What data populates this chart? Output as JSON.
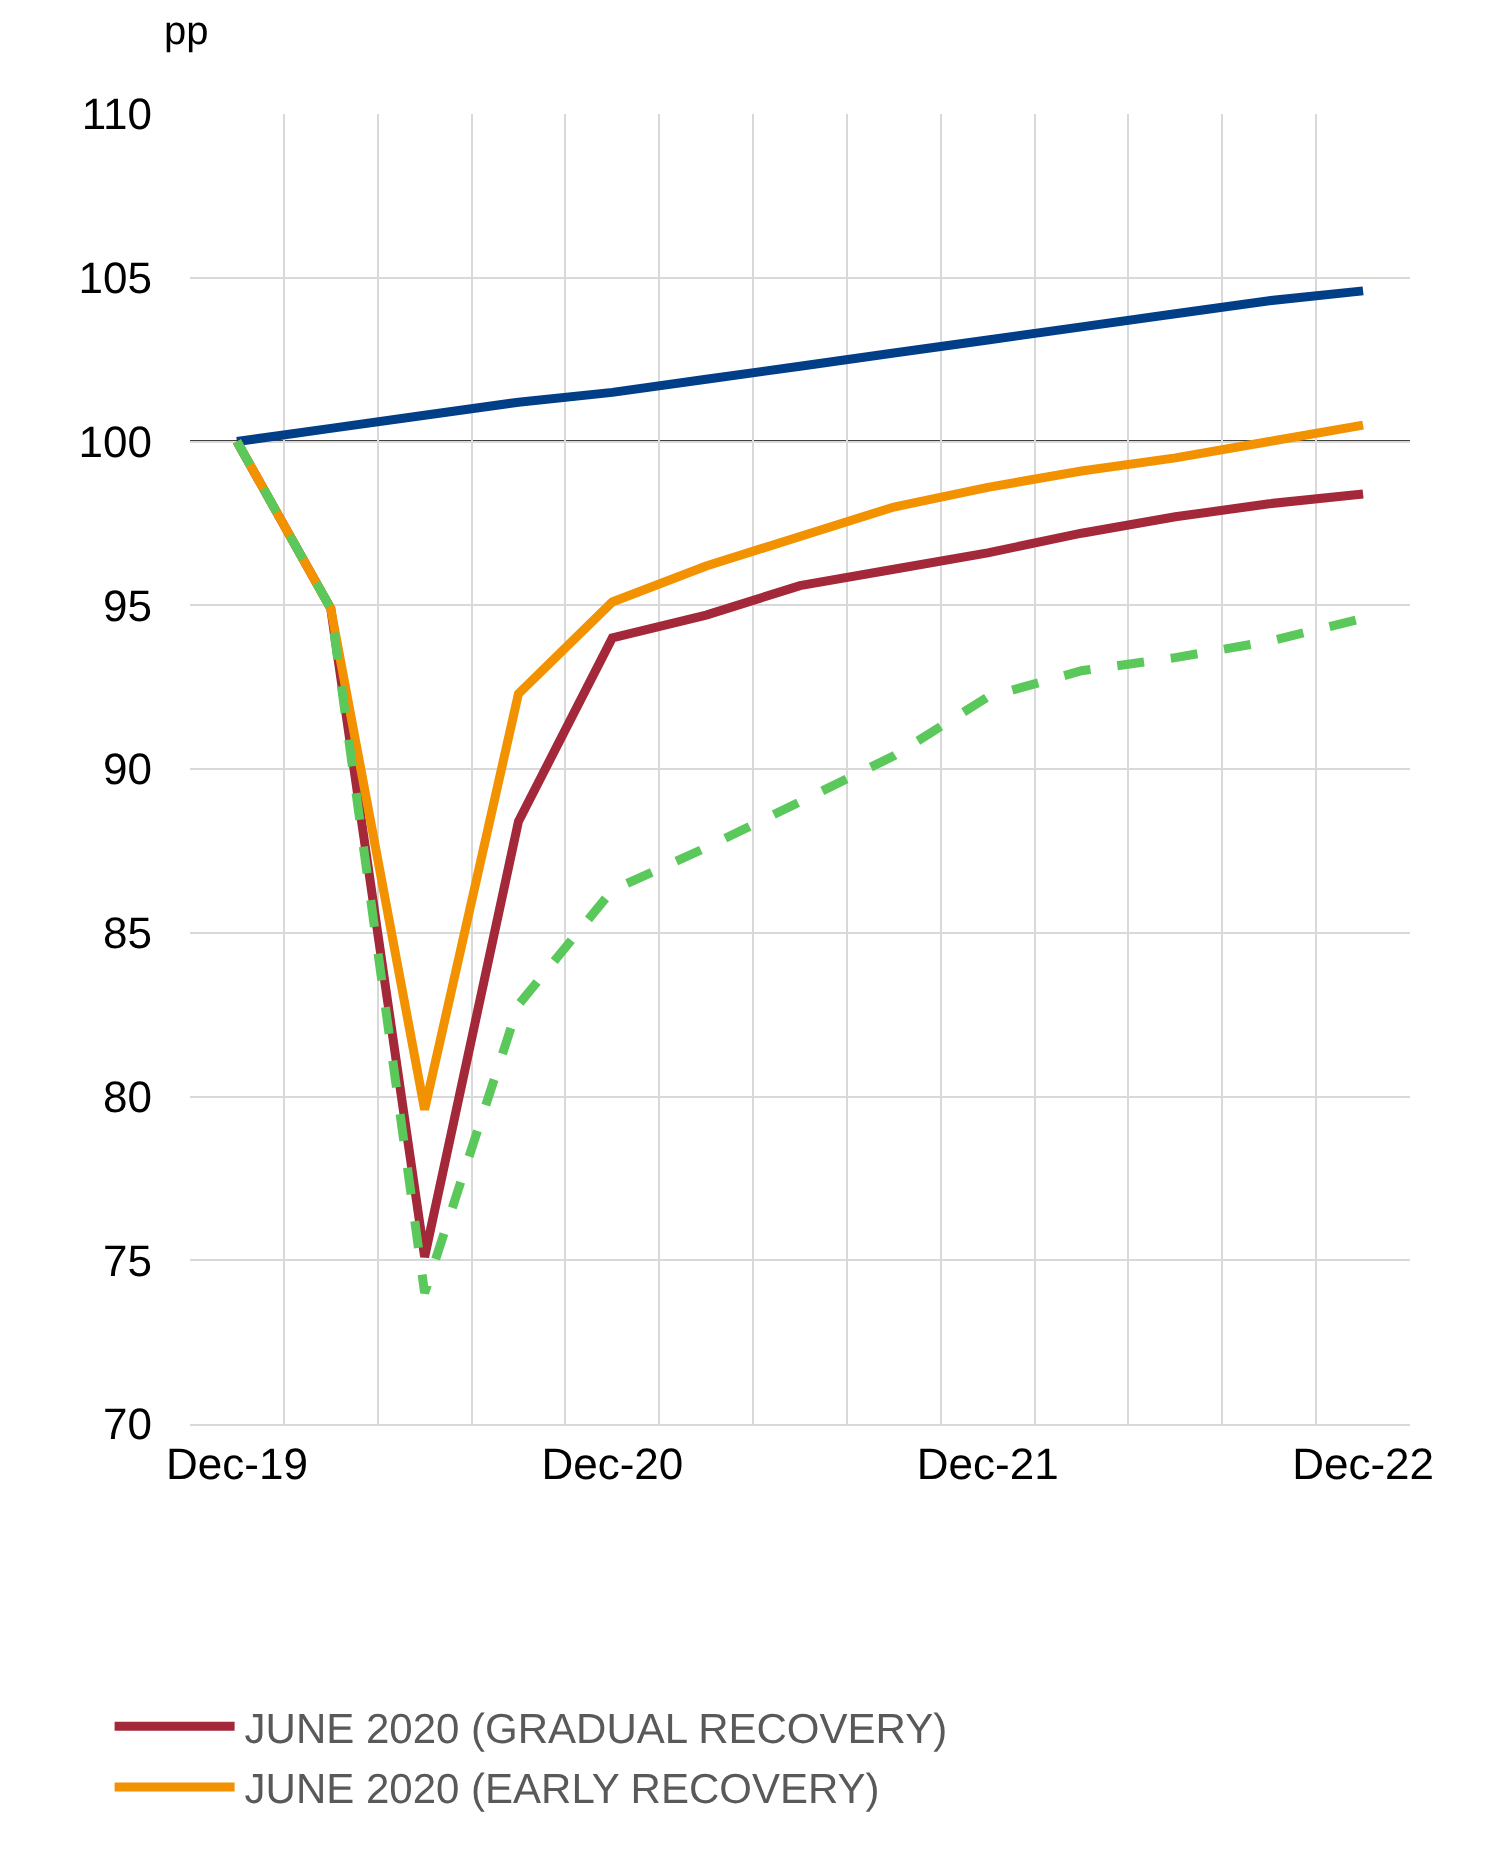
{
  "chart_data": {
    "type": "line",
    "ylabel": "pp",
    "categories": [
      "Dec-19",
      null,
      null,
      null,
      "Dec-20",
      null,
      null,
      null,
      "Dec-21",
      null,
      null,
      null,
      "Dec-22"
    ],
    "series": [
      {
        "color": "#003f87",
        "line_style": "solid",
        "values": [
          100,
          100.4,
          100.8,
          101.2,
          101.5,
          101.9,
          102.3,
          102.7,
          103.1,
          103.5,
          103.9,
          104.3,
          104.6
        ]
      },
      {
        "name": "JUNE 2020 (GRADUAL RECOVERY)",
        "color": "#a3283a",
        "line_style": "solid",
        "values": [
          100,
          94.9,
          75.1,
          88.4,
          94.0,
          94.7,
          95.6,
          96.1,
          96.6,
          97.2,
          97.7,
          98.1,
          98.4
        ]
      },
      {
        "name": "JUNE 2020 (EARLY RECOVERY)",
        "color": "#f39200",
        "line_style": "solid",
        "values": [
          100,
          94.9,
          79.6,
          92.3,
          95.1,
          96.2,
          97.1,
          98.0,
          98.6,
          99.1,
          99.5,
          100.0,
          100.5
        ]
      },
      {
        "color": "#5ac85a",
        "line_style": "dashed",
        "values": [
          100,
          94.9,
          74.0,
          82.8,
          86.3,
          87.6,
          89.0,
          90.4,
          92.2,
          93.0,
          93.4,
          93.9,
          94.6
        ]
      }
    ],
    "ylim": [
      70,
      110
    ],
    "yticks": [
      70,
      75,
      80,
      85,
      90,
      95,
      100,
      105,
      110
    ],
    "ref_lines": [
      {
        "axis": "y",
        "value": 100,
        "color": "#000000"
      }
    ],
    "grid": true,
    "legend": "bottom left"
  }
}
